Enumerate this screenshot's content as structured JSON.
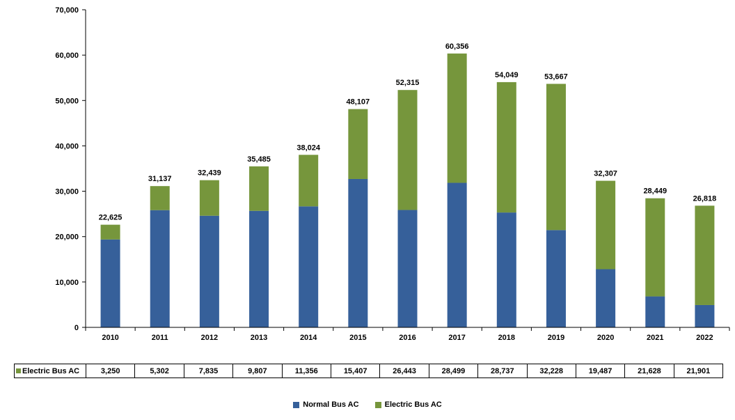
{
  "chart_data": {
    "type": "bar",
    "stacked": true,
    "title": "",
    "xlabel": "",
    "ylabel": "",
    "ylim": [
      0,
      70000
    ],
    "yticks": [
      0,
      10000,
      20000,
      30000,
      40000,
      50000,
      60000,
      70000
    ],
    "ytick_labels": [
      "0",
      "10,000",
      "20,000",
      "30,000",
      "40,000",
      "50,000",
      "60,000",
      "70,000"
    ],
    "categories": [
      "2010",
      "2011",
      "2012",
      "2013",
      "2014",
      "2015",
      "2016",
      "2017",
      "2018",
      "2019",
      "2020",
      "2021",
      "2022"
    ],
    "series": [
      {
        "name": "Normal Bus AC",
        "color": "#36609A",
        "values": [
          19375,
          25835,
          24604,
          25678,
          26668,
          32700,
          25872,
          31857,
          25312,
          21439,
          12820,
          6821,
          4917
        ]
      },
      {
        "name": "Electric Bus AC",
        "color": "#76963C",
        "values": [
          3250,
          5302,
          7835,
          9807,
          11356,
          15407,
          26443,
          28499,
          28737,
          32228,
          19487,
          21628,
          21901
        ]
      }
    ],
    "totals": [
      22625,
      31137,
      32439,
      35485,
      38024,
      48107,
      52315,
      60356,
      54049,
      53667,
      32307,
      28449,
      26818
    ],
    "total_labels": [
      "22,625",
      "31,137",
      "32,439",
      "35,485",
      "38,024",
      "48,107",
      "52,315",
      "60,356",
      "54,049",
      "53,667",
      "32,307",
      "28,449",
      "26,818"
    ],
    "legend": {
      "position": "bottom",
      "entries": [
        "Normal Bus AC",
        "Electric Bus AC"
      ]
    },
    "data_table": {
      "row_label": "Electric Bus AC",
      "values": [
        "3,250",
        "5,302",
        "7,835",
        "9,807",
        "11,356",
        "15,407",
        "26,443",
        "28,499",
        "28,737",
        "32,228",
        "19,487",
        "21,628",
        "21,901"
      ]
    }
  }
}
